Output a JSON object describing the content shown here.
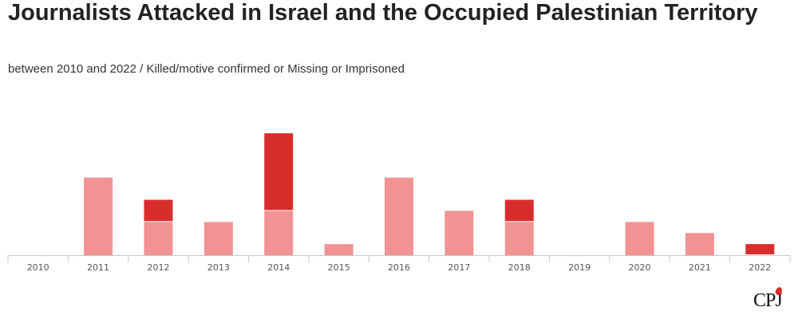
{
  "chart_data": {
    "type": "bar",
    "stacked": true,
    "title": "Journalists Attacked in Israel and the Occupied Palestinian Territory",
    "subtitle": "between 2010 and 2022 / Killed/motive confirmed or Missing or Imprisoned",
    "xlabel": "",
    "ylabel": "",
    "categories": [
      "2010",
      "2011",
      "2012",
      "2013",
      "2014",
      "2015",
      "2016",
      "2017",
      "2018",
      "2019",
      "2020",
      "2021",
      "2022"
    ],
    "series": [
      {
        "name": "Imprisoned",
        "color": "#f19393",
        "values": [
          0,
          7,
          3,
          3,
          4,
          1,
          7,
          4,
          3,
          0,
          3,
          2,
          0
        ]
      },
      {
        "name": "Killed/motive confirmed",
        "color": "#d92d2d",
        "values": [
          0,
          0,
          2,
          0,
          7,
          0,
          0,
          0,
          2,
          0,
          0,
          0,
          1
        ]
      }
    ],
    "ylim": [
      0,
      11
    ],
    "grid": false,
    "legend": "none"
  },
  "branding": {
    "logo_text": "CPJ"
  }
}
